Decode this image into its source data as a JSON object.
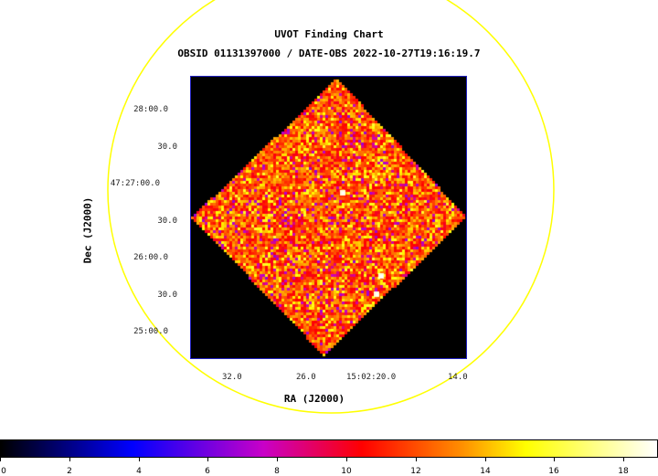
{
  "chart": {
    "title": "UVOT Finding Chart",
    "obs_title": "OBSID 01131397000 / DATE-OBS 2022-10-27T19:16:19.7",
    "x_axis_title": "RA (J2000)",
    "y_axis_title": "Dec (J2000)",
    "dec_ticks": [
      "28:00.0",
      "30.0",
      "47:27:00.0",
      "30.0",
      "26:00.0",
      "30.0",
      "25:00.0"
    ],
    "ra_ticks": [
      "32.0",
      "26.0",
      "15:02:20.0",
      "14.0"
    ]
  },
  "colorbar": {
    "ticks": [
      "0",
      "2",
      "4",
      "6",
      "8",
      "10",
      "12",
      "14",
      "16",
      "18"
    ],
    "min": 0,
    "max": 19
  },
  "colors": {
    "region_circle": "#ffff00",
    "frame_border": "#2020c0",
    "background": "#000000"
  }
}
